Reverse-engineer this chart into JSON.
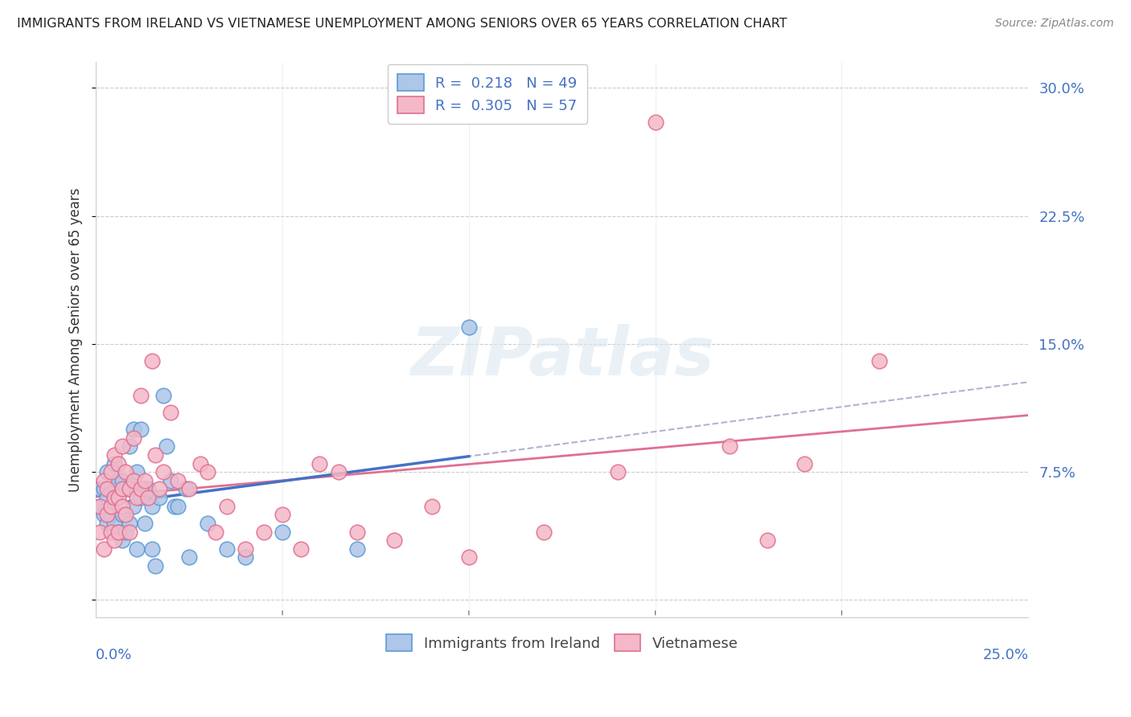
{
  "title": "IMMIGRANTS FROM IRELAND VS VIETNAMESE UNEMPLOYMENT AMONG SENIORS OVER 65 YEARS CORRELATION CHART",
  "source": "Source: ZipAtlas.com",
  "ylabel": "Unemployment Among Seniors over 65 years",
  "watermark": "ZIPatlas",
  "legend_r1_val": "0.218",
  "legend_n1_val": "49",
  "legend_r2_val": "0.305",
  "legend_n2_val": "57",
  "color_ireland_fill": "#aec6e8",
  "color_ireland_edge": "#5b9bd5",
  "color_viet_fill": "#f4b8c8",
  "color_viet_edge": "#e07090",
  "color_ireland_line": "#4472c4",
  "color_viet_line": "#e07090",
  "color_ireland_dash": "#aaaacc",
  "color_text_blue": "#4472c4",
  "ytick_labels": [
    "",
    "7.5%",
    "15.0%",
    "22.5%",
    "30.0%"
  ],
  "ytick_vals": [
    0.0,
    0.075,
    0.15,
    0.225,
    0.3
  ],
  "xlim": [
    0.0,
    0.25
  ],
  "ylim": [
    -0.01,
    0.315
  ],
  "ireland_x": [
    0.001,
    0.001,
    0.002,
    0.002,
    0.003,
    0.003,
    0.003,
    0.004,
    0.004,
    0.005,
    0.005,
    0.005,
    0.006,
    0.006,
    0.007,
    0.007,
    0.007,
    0.008,
    0.008,
    0.009,
    0.009,
    0.009,
    0.01,
    0.01,
    0.01,
    0.011,
    0.011,
    0.012,
    0.012,
    0.013,
    0.013,
    0.014,
    0.015,
    0.015,
    0.016,
    0.017,
    0.018,
    0.019,
    0.02,
    0.021,
    0.022,
    0.024,
    0.025,
    0.03,
    0.035,
    0.04,
    0.05,
    0.07,
    0.1
  ],
  "ireland_y": [
    0.055,
    0.065,
    0.05,
    0.065,
    0.045,
    0.06,
    0.075,
    0.05,
    0.065,
    0.045,
    0.06,
    0.08,
    0.04,
    0.07,
    0.035,
    0.05,
    0.07,
    0.04,
    0.065,
    0.045,
    0.065,
    0.09,
    0.055,
    0.07,
    0.1,
    0.03,
    0.075,
    0.06,
    0.1,
    0.045,
    0.065,
    0.065,
    0.03,
    0.055,
    0.02,
    0.06,
    0.12,
    0.09,
    0.07,
    0.055,
    0.055,
    0.065,
    0.025,
    0.045,
    0.03,
    0.025,
    0.04,
    0.03,
    0.16
  ],
  "viet_x": [
    0.001,
    0.001,
    0.002,
    0.002,
    0.003,
    0.003,
    0.004,
    0.004,
    0.004,
    0.005,
    0.005,
    0.005,
    0.006,
    0.006,
    0.006,
    0.007,
    0.007,
    0.007,
    0.008,
    0.008,
    0.009,
    0.009,
    0.01,
    0.01,
    0.011,
    0.012,
    0.012,
    0.013,
    0.014,
    0.015,
    0.016,
    0.017,
    0.018,
    0.02,
    0.022,
    0.025,
    0.028,
    0.03,
    0.032,
    0.035,
    0.04,
    0.045,
    0.05,
    0.055,
    0.06,
    0.065,
    0.07,
    0.08,
    0.09,
    0.1,
    0.12,
    0.14,
    0.15,
    0.17,
    0.18,
    0.19,
    0.21
  ],
  "viet_y": [
    0.04,
    0.055,
    0.03,
    0.07,
    0.05,
    0.065,
    0.04,
    0.075,
    0.055,
    0.035,
    0.06,
    0.085,
    0.04,
    0.06,
    0.08,
    0.055,
    0.065,
    0.09,
    0.05,
    0.075,
    0.04,
    0.065,
    0.07,
    0.095,
    0.06,
    0.065,
    0.12,
    0.07,
    0.06,
    0.14,
    0.085,
    0.065,
    0.075,
    0.11,
    0.07,
    0.065,
    0.08,
    0.075,
    0.04,
    0.055,
    0.03,
    0.04,
    0.05,
    0.03,
    0.08,
    0.075,
    0.04,
    0.035,
    0.055,
    0.025,
    0.04,
    0.075,
    0.28,
    0.09,
    0.035,
    0.08,
    0.14
  ]
}
